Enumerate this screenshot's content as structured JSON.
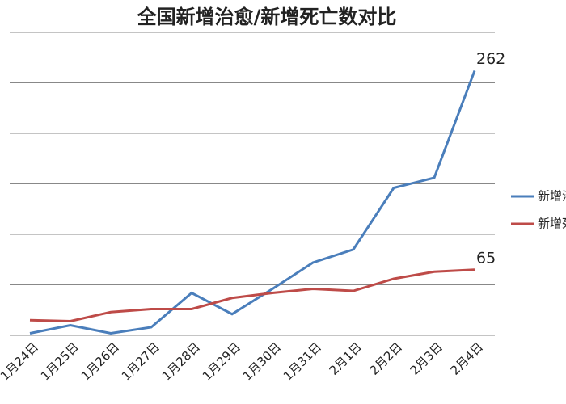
{
  "chart_data": {
    "type": "line",
    "title": "全国新增治愈/新增死亡数对比",
    "categories": [
      "1月24日",
      "1月25日",
      "1月26日",
      "1月27日",
      "1月28日",
      "1月29日",
      "1月30日",
      "1月31日",
      "2月1日",
      "2月2日",
      "2月3日",
      "2月4日"
    ],
    "series": [
      {
        "name": "新增治愈",
        "color": "#4a7ebb",
        "values": [
          2,
          10,
          2,
          8,
          42,
          21,
          46,
          72,
          85,
          146,
          156,
          262
        ]
      },
      {
        "name": "新增死亡",
        "color": "#be4b48",
        "values": [
          15,
          14,
          23,
          26,
          26,
          37,
          42,
          46,
          44,
          56,
          63,
          65
        ]
      }
    ],
    "ylim": [
      0,
      300
    ],
    "yticks": [
      0,
      50,
      100,
      150,
      200,
      250,
      300
    ],
    "grid": true,
    "show_last_label": true,
    "legend": "right"
  }
}
